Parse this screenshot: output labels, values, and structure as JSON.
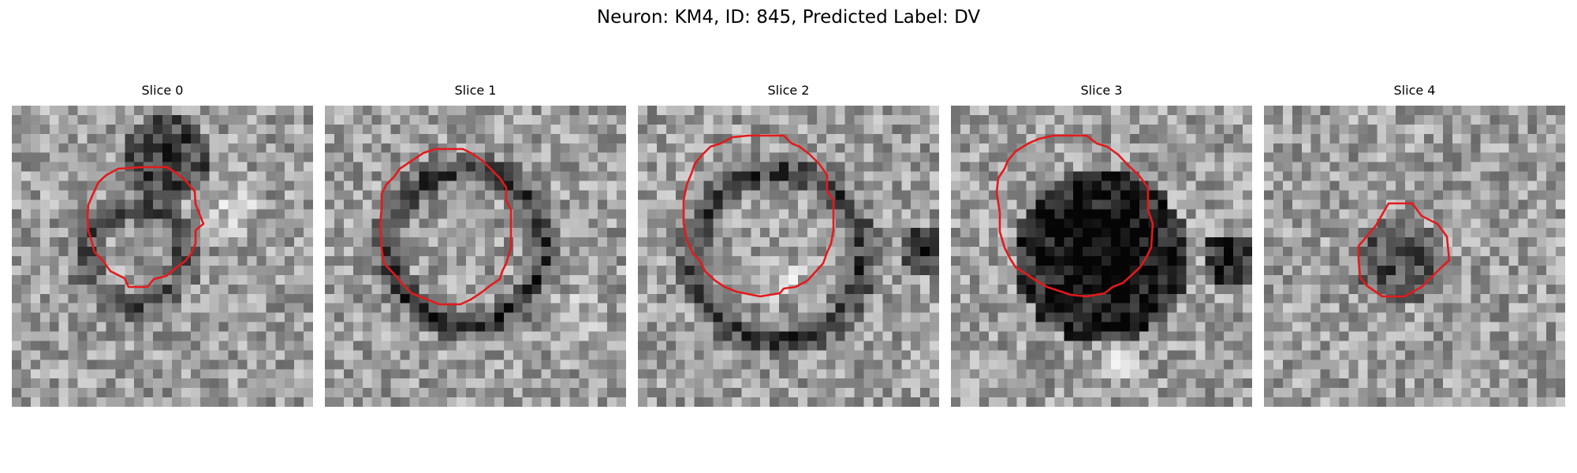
{
  "figure": {
    "title": "Neuron: KM4, ID: 845, Predicted Label: DV"
  },
  "colors": {
    "contour": "#e31a1c",
    "colormap": "grayscale"
  },
  "panels": [
    {
      "title": "Slice 0"
    },
    {
      "title": "Slice 1"
    },
    {
      "title": "Slice 2"
    },
    {
      "title": "Slice 3"
    },
    {
      "title": "Slice 4"
    }
  ]
}
